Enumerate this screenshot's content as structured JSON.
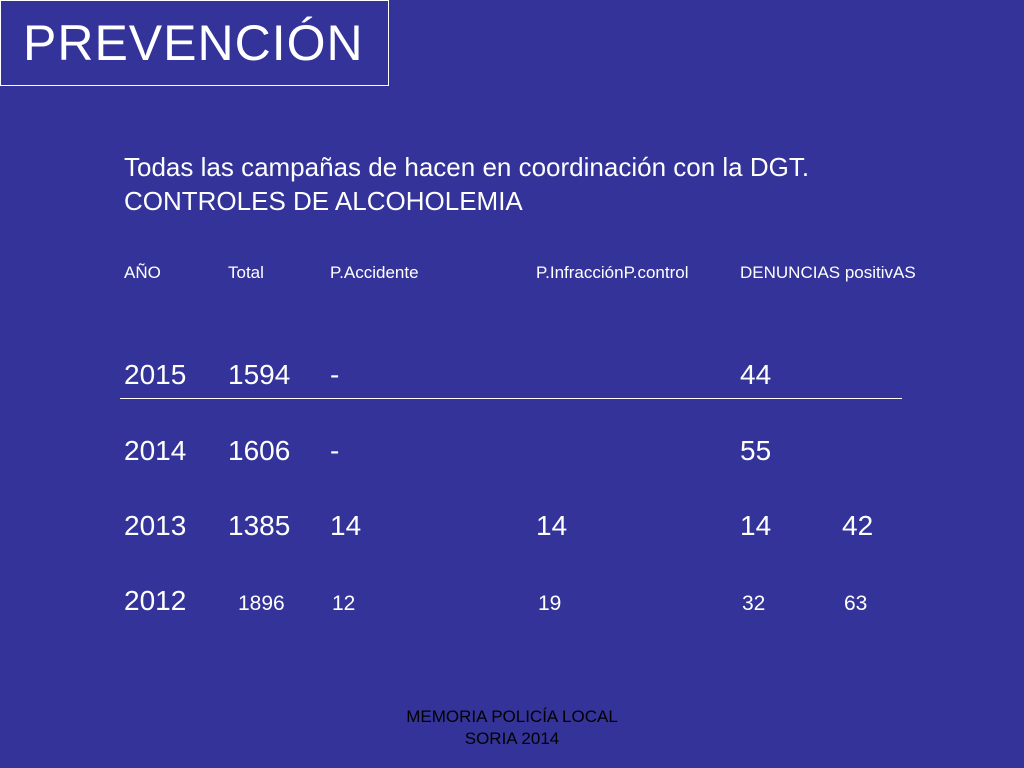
{
  "title": "PREVENCIÓN",
  "subtitle": {
    "line1": "Todas las campañas de hacen en coordinación con la DGT.",
    "line2": "CONTROLES DE ALCOHOLEMIA"
  },
  "table": {
    "headers": [
      "AÑO",
      "Total",
      "P.Accidente",
      "P.InfracciónP.control",
      "DENUNCIAS positivAS"
    ],
    "rows": [
      {
        "year": "2015",
        "total": "1594",
        "accidente": "-",
        "infraccion": "",
        "control": "44",
        "positivas": ""
      },
      {
        "year": "2014",
        "total": "1606",
        "accidente": "-",
        "infraccion": "",
        "control": "55",
        "positivas": ""
      },
      {
        "year": "2013",
        "total": "1385",
        "accidente": "14",
        "infraccion": "14",
        "control": "14",
        "positivas": "42"
      },
      {
        "year": "2012",
        "total": "1896",
        "accidente": "12",
        "infraccion": "19",
        "control": "32",
        "positivas": "63"
      }
    ]
  },
  "footer": {
    "line1": "MEMORIA POLICÍA LOCAL",
    "line2": "SORIA 2014"
  }
}
